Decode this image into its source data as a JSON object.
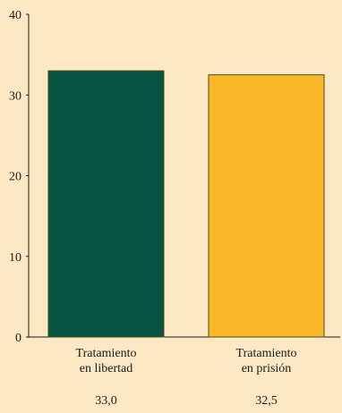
{
  "chart_data": {
    "type": "bar",
    "categories": [
      [
        "Tratamiento",
        "en libertad"
      ],
      [
        "Tratamiento",
        "en prisión"
      ]
    ],
    "values": [
      33.0,
      32.5
    ],
    "value_labels": [
      "33,0",
      "32,5"
    ],
    "ylim": [
      0,
      40
    ],
    "yticks": [
      "0",
      "10",
      "20",
      "30",
      "40"
    ],
    "title": "",
    "xlabel": "",
    "ylabel": "",
    "grid": false,
    "legend": false,
    "colors": {
      "background": "#fde8c4",
      "bars": [
        "#075442",
        "#fbb829"
      ],
      "bar_outline": "#4a4a1a",
      "axis": "#1a1a1a"
    }
  }
}
